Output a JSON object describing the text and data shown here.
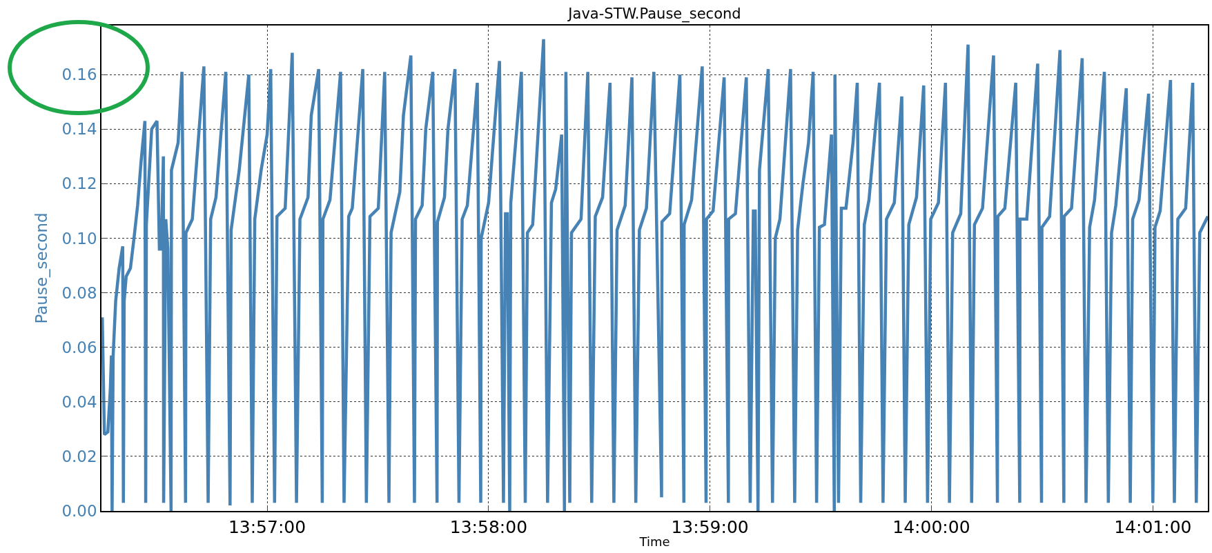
{
  "chart_data": {
    "type": "line",
    "title": "Java-STW.Pause_second",
    "xlabel": "Time",
    "ylabel": "Pause_second",
    "x": [
      13.93759,
      13.93775,
      13.93801,
      13.9382,
      13.93828,
      13.93833,
      13.93841,
      13.9386,
      13.93886,
      13.93913,
      13.93918,
      13.93924,
      13.93939,
      13.93971,
      13.93998,
      13.94025,
      13.94051,
      13.9408,
      13.94086,
      13.94091,
      13.94131,
      13.94171,
      13.94189,
      13.94203,
      13.94219,
      13.94221,
      13.94237,
      13.94253,
      13.94277,
      13.9428,
      13.9433,
      13.94359,
      13.94386,
      13.94389,
      13.94437,
      13.94524,
      13.94556,
      13.94575,
      13.94615,
      13.94689,
      13.94721,
      13.94729,
      13.9479,
      13.94862,
      13.94888,
      13.94907,
      13.94955,
      13.95,
      13.95027,
      13.95056,
      13.95074,
      13.95136,
      13.95189,
      13.95221,
      13.95247,
      13.95308,
      13.95332,
      13.95388,
      13.95415,
      13.9542,
      13.95473,
      13.95553,
      13.95579,
      13.95614,
      13.95641,
      13.9572,
      13.95747,
      13.95774,
      13.95837,
      13.95885,
      13.95917,
      13.95933,
      13.95999,
      13.96026,
      13.96082,
      13.96109,
      13.96117,
      13.96167,
      13.96194,
      13.96247,
      13.96279,
      13.96282,
      13.96335,
      13.96361,
      13.96414,
      13.96444,
      13.96468,
      13.96507,
      13.96582,
      13.96608,
      13.96611,
      13.96667,
      13.96749,
      13.96779,
      13.96794,
      13.96808,
      13.96826,
      13.96834,
      13.96914,
      13.96943,
      13.96959,
      13.96999,
      13.97081,
      13.97111,
      13.9714,
      13.97172,
      13.97217,
      13.97238,
      13.97249,
      13.97278,
      13.97291,
      13.97363,
      13.97414,
      13.97443,
      13.9747,
      13.97525,
      13.97581,
      13.9761,
      13.97634,
      13.97695,
      13.97746,
      13.97775,
      13.97802,
      13.97855,
      13.97911,
      13.97969,
      13.97972,
      13.9803,
      13.98107,
      13.98137,
      13.98139,
      13.98195,
      13.98275,
      13.98304,
      13.98307,
      13.98357,
      13.9844,
      13.98472,
      13.98474,
      13.98525,
      13.98607,
      13.98636,
      13.9866,
      13.98674,
      13.98695,
      13.98706,
      13.98772,
      13.98804,
      13.98825,
      13.9886,
      13.9894,
      13.98971,
      13.98993,
      13.99033,
      13.99075,
      13.9911,
      13.99136,
      13.99157,
      13.99195,
      13.99248,
      13.99269,
      13.99274,
      13.99301,
      13.99322,
      13.99357,
      13.9941,
      13.99442,
      13.99468,
      13.99495,
      13.9953,
      13.99609,
      13.99636,
      13.99662,
      13.99721,
      13.99777,
      13.99803,
      13.9983,
      13.99888,
      13.99942,
      13.99971,
      13.99995,
      14.00053,
      14.00106,
      14.00136,
      14.0016,
      14.00221,
      14.00276,
      14.00303,
      14.00324,
      14.00385,
      14.00468,
      14.00497,
      14.005,
      14.00553,
      14.00635,
      14.00665,
      14.00667,
      14.00718,
      14.008,
      14.00829,
      14.00832,
      14.0089,
      14.00968,
      14.00997,
      14.00999,
      14.01055,
      14.01135,
      14.01164,
      14.01191,
      14.01228,
      14.01302,
      14.01332,
      14.01356,
      14.01388,
      14.01467,
      14.01497,
      14.01515,
      14.01563,
      14.01635,
      14.01667,
      14.01683,
      14.01722,
      14.018,
      14.01829,
      14.01855,
      14.01914,
      14.01967,
      14.01994,
      14.0202,
      14.02081
    ],
    "series": [
      {
        "color": "#4682b4",
        "values": [
          0.071,
          0.028,
          0.029,
          0.045,
          0.057,
          0,
          0.057,
          0.077,
          0.089,
          0.097,
          0.003,
          0.077,
          0.086,
          0.089,
          0.1,
          0.112,
          0.128,
          0.143,
          0.003,
          0.105,
          0.14,
          0.143,
          0.096,
          0.096,
          0.13,
          0.003,
          0.107,
          0.096,
          0,
          0.125,
          0.135,
          0.161,
          0.003,
          0.102,
          0.107,
          0.163,
          0.003,
          0.107,
          0.115,
          0.161,
          0.002,
          0.103,
          0.125,
          0.16,
          0.003,
          0.107,
          0.125,
          0.138,
          0.162,
          0.003,
          0.108,
          0.111,
          0.168,
          0.003,
          0.107,
          0.115,
          0.145,
          0.162,
          0.003,
          0.107,
          0.114,
          0.161,
          0.003,
          0.108,
          0.111,
          0.162,
          0.003,
          0.108,
          0.111,
          0.161,
          0.003,
          0.102,
          0.117,
          0.145,
          0.167,
          0.003,
          0.107,
          0.112,
          0.14,
          0.161,
          0.003,
          0.106,
          0.115,
          0.14,
          0.162,
          0.003,
          0.107,
          0.112,
          0.157,
          0.003,
          0.1,
          0.113,
          0.165,
          0.003,
          0.109,
          0.109,
          0,
          0.113,
          0.161,
          0.003,
          0.102,
          0.105,
          0.173,
          0.003,
          0.113,
          0.118,
          0.138,
          0,
          0.161,
          0.003,
          0.102,
          0.107,
          0.161,
          0.003,
          0.108,
          0.115,
          0.157,
          0.003,
          0.103,
          0.112,
          0.159,
          0.003,
          0.103,
          0.111,
          0.161,
          0.005,
          0.106,
          0.109,
          0.16,
          0.003,
          0.105,
          0.114,
          0.163,
          0.003,
          0.107,
          0.11,
          0.159,
          0.003,
          0.107,
          0.109,
          0.159,
          0.003,
          0.11,
          0.11,
          0,
          0.125,
          0.162,
          0.003,
          0.1,
          0.107,
          0.162,
          0.003,
          0.103,
          0.12,
          0.135,
          0.161,
          0.003,
          0.104,
          0.105,
          0.138,
          0,
          0.16,
          0.003,
          0.111,
          0.111,
          0.135,
          0.157,
          0.003,
          0.105,
          0.114,
          0.157,
          0.003,
          0.107,
          0.113,
          0.152,
          0.003,
          0.105,
          0.115,
          0.156,
          0.003,
          0.107,
          0.113,
          0.157,
          0.003,
          0.102,
          0.109,
          0.171,
          0.003,
          0.105,
          0.111,
          0.167,
          0.003,
          0.108,
          0.111,
          0.157,
          0.003,
          0.107,
          0.107,
          0.164,
          0.003,
          0.104,
          0.108,
          0.169,
          0.003,
          0.108,
          0.111,
          0.166,
          0.003,
          0.104,
          0.114,
          0.161,
          0.003,
          0.102,
          0.112,
          0.155,
          0.003,
          0.107,
          0.114,
          0.153,
          0.003,
          0.104,
          0.11,
          0.158,
          0.003,
          0.107,
          0.111,
          0.157,
          0.003,
          0.102,
          0.108
        ]
      }
    ],
    "xlim": [
      13.93753,
      14.02081
    ],
    "xticks": [
      {
        "value": 13.95,
        "label": "13:57:00"
      },
      {
        "value": 13.96667,
        "label": "13:58:00"
      },
      {
        "value": 13.98333,
        "label": "13:59:00"
      },
      {
        "value": 14.0,
        "label": "14:00:00"
      },
      {
        "value": 14.01667,
        "label": "14:01:00"
      }
    ],
    "ylim": [
      0,
      0.178
    ],
    "yticks": [
      {
        "value": 0,
        "label": "0.00"
      },
      {
        "value": 0.02,
        "label": "0.02"
      },
      {
        "value": 0.04,
        "label": "0.04"
      },
      {
        "value": 0.06,
        "label": "0.06"
      },
      {
        "value": 0.08,
        "label": "0.08"
      },
      {
        "value": 0.1,
        "label": "0.10"
      },
      {
        "value": 0.12,
        "label": "0.12"
      },
      {
        "value": 0.14,
        "label": "0.14"
      },
      {
        "value": 0.16,
        "label": "0.16"
      }
    ],
    "grid": true,
    "marker": "none",
    "line_style": "solid"
  }
}
